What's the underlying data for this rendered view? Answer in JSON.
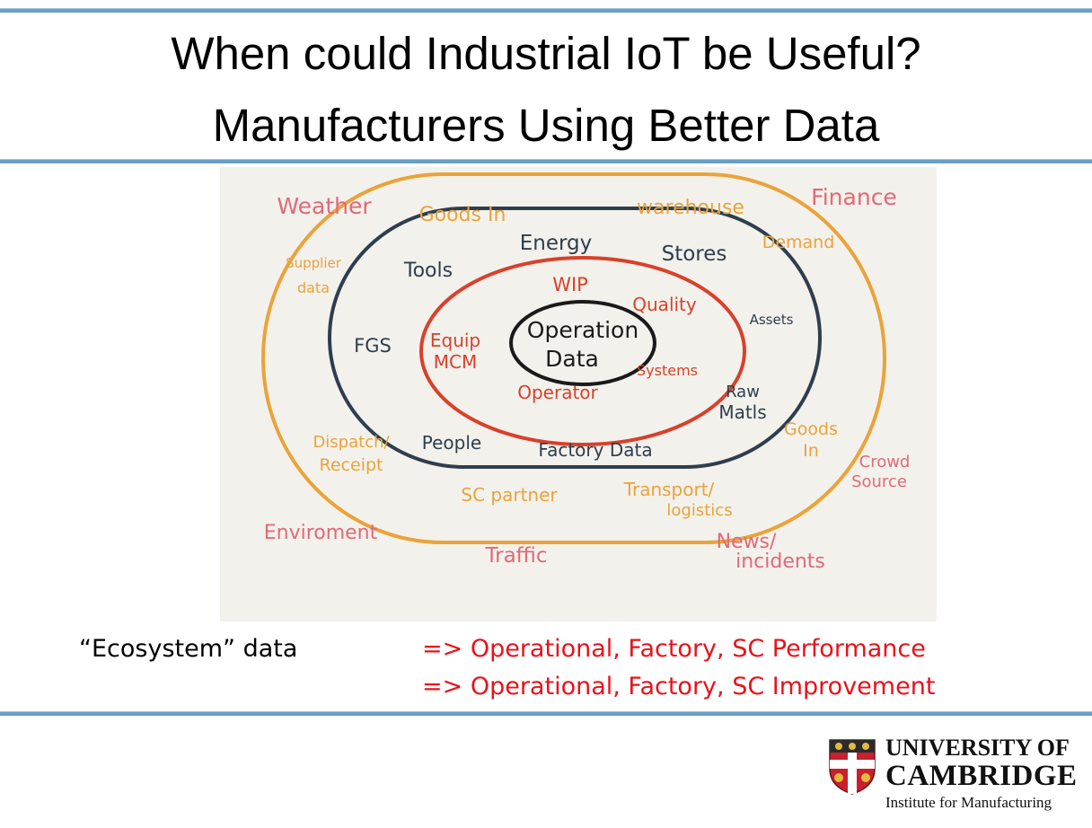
{
  "title": {
    "line1": "When could Industrial IoT be Useful?",
    "line2": "Manufacturers Using Better Data"
  },
  "diagram": {
    "colors": {
      "core": "#1a1a1a",
      "inner": "#d8412a",
      "middle": "#2e3e4e",
      "outer": "#eaa33a",
      "outside": "#e06a78"
    },
    "core": {
      "line1": "Operation",
      "line2": "Data"
    },
    "inner_ring": {
      "wip": "WIP",
      "quality": "Quality",
      "equip_line1": "Equip",
      "equip_line2": "MCM",
      "systems": "Systems",
      "operator": "Operator"
    },
    "middle_ring": {
      "tools": "Tools",
      "energy": "Energy",
      "stores": "Stores",
      "fgs": "FGS",
      "assets": "Assets",
      "raw_line1": "Raw",
      "raw_line2": "Matls",
      "people": "People",
      "factory_data": "Factory Data"
    },
    "outer_ring": {
      "goods_in_top": "Goods In",
      "warehouse": "warehouse",
      "demand": "Demand",
      "supplier_line1": "Supplier",
      "supplier_line2": "data",
      "goods_in_right_line1": "Goods",
      "goods_in_right_line2": "In",
      "dispatch_line1": "Dispatch/",
      "dispatch_line2": "Receipt",
      "sc_partner": "SC partner",
      "transport_line1": "Transport/",
      "transport_line2": "logistics"
    },
    "outside": {
      "weather": "Weather",
      "finance": "Finance",
      "crowd_line1": "Crowd",
      "crowd_line2": "Source",
      "enviroment": "Enviroment",
      "traffic": "Traffic",
      "news_line1": "News/",
      "news_line2": "incidents"
    }
  },
  "captions": {
    "ecosystem": "“Ecosystem” data",
    "arrow1": "=> Operational, Factory, SC Performance",
    "arrow2": "=> Operational, Factory, SC Improvement"
  },
  "logo": {
    "university": "UNIVERSITY OF",
    "cambridge": "CAMBRIDGE",
    "institute": "Institute for Manufacturing"
  }
}
